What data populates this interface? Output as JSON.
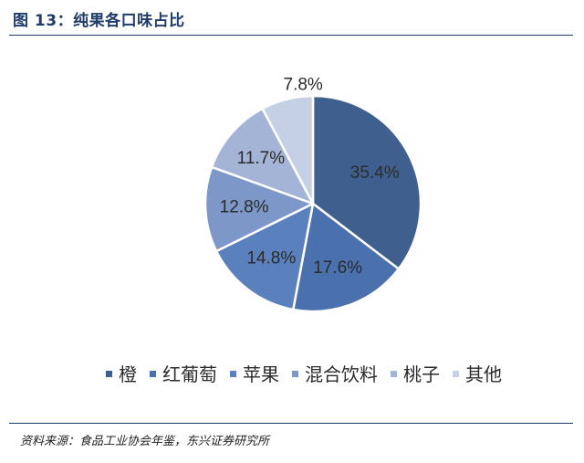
{
  "figure": {
    "title": "图 13：纯果各口味占比",
    "source": "资料来源：食品工业协会年鉴，东兴证券研究所"
  },
  "chart_data": {
    "type": "pie",
    "categories": [
      "橙",
      "红葡萄",
      "苹果",
      "混合饮料",
      "桃子",
      "其他"
    ],
    "values": [
      35.4,
      17.6,
      14.8,
      12.8,
      11.7,
      7.8
    ],
    "labels": [
      "35.4%",
      "17.6%",
      "14.8%",
      "12.8%",
      "11.7%",
      "7.8%"
    ],
    "colors": [
      "#3f5f8e",
      "#4a70ad",
      "#5b80be",
      "#7d97c8",
      "#a4b4d6",
      "#c6d0e5"
    ],
    "legend_position": "bottom",
    "start_angle": "12 o'clock",
    "direction": "clockwise"
  }
}
